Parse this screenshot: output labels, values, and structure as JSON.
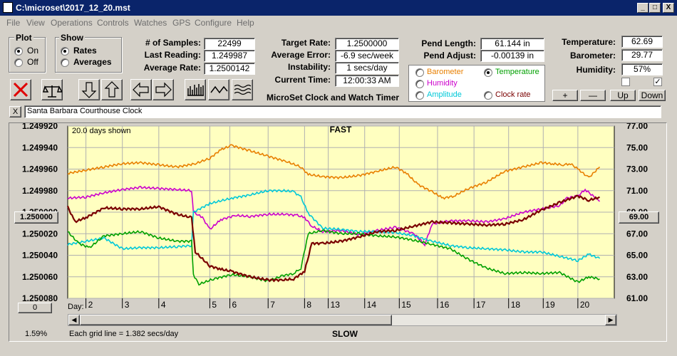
{
  "window": {
    "title": "C:\\microset\\2017_12_20.mst",
    "controls": [
      "_",
      "□",
      "X"
    ]
  },
  "menu": [
    "File",
    "View",
    "Operations",
    "Controls",
    "Watches",
    "GPS",
    "Configure",
    "Help"
  ],
  "plot": {
    "label": "Plot",
    "options": [
      "On",
      "Off"
    ],
    "selected": "On"
  },
  "show": {
    "label": "Show",
    "options": [
      "Rates",
      "Averages"
    ],
    "selected": "Rates"
  },
  "stats": {
    "samples_label": "# of Samples:",
    "samples": "22499",
    "last_reading_label": "Last Reading:",
    "last_reading": "1.249987",
    "avg_rate_label": "Average Rate:",
    "avg_rate": "1.2500142"
  },
  "timing": {
    "target_rate_label": "Target Rate:",
    "target_rate": "1.2500000",
    "avg_error_label": "Average Error:",
    "avg_error": "-6.9 sec/week",
    "instability_label": "Instability:",
    "instability": "1 secs/day",
    "current_time_label": "Current Time:",
    "current_time": "12:00:33 AM"
  },
  "app_name": "MicroSet Clock and Watch Timer",
  "pend": {
    "length_label": "Pend Length:",
    "length": "61.144 in",
    "adjust_label": "Pend Adjust:",
    "adjust": "-0.00139 in"
  },
  "overlay": {
    "options": [
      {
        "label": "Barometer",
        "color": "#e87f00"
      },
      {
        "label": "Temperature",
        "color": "#00a000"
      },
      {
        "label": "Humidity",
        "color": "#cc00cc"
      },
      {
        "label": "Amplitude",
        "color": "#00c8d8"
      },
      {
        "label": "Clock rate",
        "color": "#7a0000"
      }
    ],
    "selected": "Temperature"
  },
  "env": {
    "temp_label": "Temperature:",
    "temp": "62.69",
    "baro_label": "Barometer:",
    "baro": "29.77",
    "humidity_label": "Humidity:",
    "humidity": "57%"
  },
  "env_buttons": [
    "+",
    "—",
    "Up",
    "Down"
  ],
  "checkboxes": [
    false,
    true
  ],
  "clock_name": "Santa Barbara Courthouse Clock",
  "small_x_button": "X",
  "toolbar_icons": [
    "stop-icon",
    "balance-icon",
    "arrow-down-icon",
    "arrow-up-icon",
    "arrow-left-icon",
    "arrow-right-icon",
    "bars-icon",
    "wave-icon",
    "waves-icon"
  ],
  "chart_data": {
    "type": "line",
    "title": "FAST",
    "bottom_title": "SLOW",
    "days_shown": "20.0 days shown",
    "grid_note": "Each grid line = 1.382 secs/day",
    "percent": "1.59%",
    "left_button": "1.250000",
    "right_button": "69.00",
    "zero_button": "0",
    "y_left_ticks": [
      "1.249920",
      "1.249940",
      "1.249960",
      "1.249980",
      "1.250000",
      "1.250020",
      "1.250040",
      "1.250060",
      "1.250080"
    ],
    "y_left_lim": [
      1.24992,
      1.25008
    ],
    "y_right_ticks": [
      "77.00",
      "75.00",
      "73.00",
      "71.00",
      "69.00",
      "67.00",
      "65.00",
      "63.00",
      "61.00"
    ],
    "y_right_lim": [
      61,
      77
    ],
    "x_label": "Day:",
    "x_ticks": [
      {
        "label": "2",
        "x": 0.5
      },
      {
        "label": "3",
        "x": 1.5
      },
      {
        "label": "4",
        "x": 2.5
      },
      {
        "label": "5",
        "x": 3.9
      },
      {
        "label": "6",
        "x": 4.45
      },
      {
        "label": "7",
        "x": 5.5
      },
      {
        "label": "8",
        "x": 6.5
      },
      {
        "label": "13",
        "x": 7.15
      },
      {
        "label": "14",
        "x": 8.15
      },
      {
        "label": "15",
        "x": 9.1
      },
      {
        "label": "16",
        "x": 10.15
      },
      {
        "label": "17",
        "x": 11.15
      },
      {
        "label": "18",
        "x": 12.1
      },
      {
        "label": "19",
        "x": 13.05
      },
      {
        "label": "20",
        "x": 14.0
      }
    ],
    "x_range": [
      0,
      15
    ],
    "series": [
      {
        "color": "#e87f00",
        "axis": "right",
        "x": [
          0,
          0.5,
          1,
          1.5,
          2,
          2.5,
          3,
          3.5,
          3.9,
          4.2,
          4.5,
          5,
          5.5,
          6,
          6.4,
          6.6,
          7,
          7.5,
          8,
          8.5,
          9,
          9.3,
          9.6,
          10,
          10.3,
          10.6,
          11,
          11.5,
          12,
          12.5,
          13,
          13.3,
          13.6,
          13.8,
          14,
          14.3,
          14.6
        ],
        "y": [
          72.6,
          72.9,
          73.2,
          73.5,
          73.6,
          73.4,
          73.2,
          73.5,
          74.0,
          74.8,
          75.2,
          74.7,
          74.2,
          73.7,
          73.2,
          72.5,
          72.3,
          72.2,
          72.4,
          72.8,
          73.2,
          72.6,
          71.6,
          70.9,
          70.3,
          70.5,
          71.2,
          71.8,
          72.8,
          73.2,
          73.6,
          73.5,
          73.4,
          73.5,
          73.0,
          72.2,
          73.2
        ]
      },
      {
        "color": "#cc00cc",
        "axis": "right",
        "x": [
          0,
          0.5,
          1,
          1.5,
          2,
          2.5,
          3,
          3.4,
          3.45,
          3.7,
          3.9,
          4.2,
          4.6,
          5,
          5.5,
          6,
          6.3,
          6.5,
          6.7,
          7,
          7.5,
          8,
          8.5,
          9,
          9.5,
          9.8,
          10,
          10.5,
          11,
          11.5,
          12,
          12.5,
          13,
          13.5,
          13.7,
          14,
          14.2,
          14.6
        ],
        "y": [
          70.3,
          70.4,
          70.8,
          71.1,
          71.3,
          71.2,
          71.1,
          71.0,
          69.0,
          68.5,
          67.4,
          68.3,
          68.7,
          68.6,
          68.8,
          68.8,
          68.7,
          68.5,
          67.7,
          67.2,
          67.3,
          66.9,
          67.3,
          67.6,
          67.0,
          66.0,
          67.9,
          68.2,
          68.2,
          68.1,
          68.4,
          69.0,
          69.3,
          69.6,
          70.3,
          70.5,
          71.1,
          70.0
        ]
      },
      {
        "color": "#00c8d8",
        "axis": "right",
        "x": [
          0,
          0.5,
          1,
          1.5,
          2,
          2.5,
          3,
          3.4,
          3.45,
          3.9,
          4.5,
          5,
          5.5,
          5.9,
          6.2,
          6.4,
          6.6,
          7,
          7.5,
          8,
          8.5,
          9,
          9.5,
          10,
          10.5,
          11,
          11.5,
          12,
          12.5,
          13,
          13.5,
          14,
          14.3,
          14.6
        ],
        "y": [
          66.0,
          66.3,
          66.6,
          65.6,
          65.7,
          65.7,
          65.8,
          65.9,
          69.0,
          69.8,
          70.3,
          70.6,
          71.0,
          71.0,
          70.9,
          70.4,
          68.9,
          67.5,
          67.4,
          67.2,
          67.2,
          67.1,
          66.8,
          66.3,
          65.9,
          65.7,
          65.6,
          65.5,
          65.3,
          65.3,
          64.9,
          64.5,
          65.1,
          64.7
        ]
      },
      {
        "color": "#00a000",
        "axis": "right",
        "x": [
          0,
          0.3,
          0.6,
          1,
          1.5,
          2,
          2.5,
          3,
          3.4,
          3.45,
          3.6,
          4,
          4.5,
          5,
          5.5,
          5.9,
          6.2,
          6.4,
          6.6,
          7,
          7.5,
          8,
          8.5,
          9,
          9.5,
          10,
          10.5,
          11,
          11.5,
          12,
          12.5,
          13,
          13.5,
          14,
          14.3,
          14.6
        ],
        "y": [
          67.2,
          66.1,
          65.7,
          66.8,
          67.0,
          67.2,
          66.6,
          66.3,
          66.3,
          63.2,
          62.3,
          62.8,
          63.2,
          63.0,
          62.6,
          63.1,
          63.3,
          63.8,
          67.0,
          67.3,
          67.0,
          67.0,
          66.8,
          66.7,
          66.4,
          66.0,
          65.6,
          64.6,
          63.8,
          63.3,
          63.4,
          63.3,
          63.4,
          62.5,
          63.0,
          62.8
        ]
      },
      {
        "color": "#7a0000",
        "axis": "left",
        "x": [
          0,
          0.2,
          0.5,
          1,
          1.5,
          2,
          2.5,
          3,
          3.4,
          3.5,
          3.9,
          4.2,
          4.5,
          5,
          5.5,
          5.9,
          6.2,
          6.5,
          6.7,
          7,
          7.5,
          8,
          8.5,
          9,
          9.5,
          10,
          10.5,
          11,
          11.5,
          12,
          12.5,
          13,
          13.5,
          14,
          14.3,
          14.6
        ],
        "y": [
          1.249995,
          1.250009,
          1.250005,
          1.249996,
          1.249997,
          1.249997,
          1.249995,
          1.250002,
          1.250005,
          1.250037,
          1.25005,
          1.250053,
          1.250055,
          1.25006,
          1.250063,
          1.250063,
          1.250062,
          1.250055,
          1.250029,
          1.250029,
          1.250027,
          1.250023,
          1.250018,
          1.250017,
          1.250013,
          1.250009,
          1.25001,
          1.250011,
          1.250012,
          1.250011,
          1.250007,
          1.249998,
          1.249991,
          1.249985,
          1.249989,
          1.249986
        ]
      }
    ]
  }
}
